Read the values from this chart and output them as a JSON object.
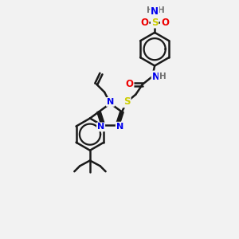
{
  "background_color": "#f2f2f2",
  "atom_colors": {
    "C": "#1a1a1a",
    "N": "#0000ee",
    "O": "#ee0000",
    "S": "#cccc00",
    "H": "#707070"
  },
  "bond_color": "#1a1a1a",
  "bond_width": 1.8
}
